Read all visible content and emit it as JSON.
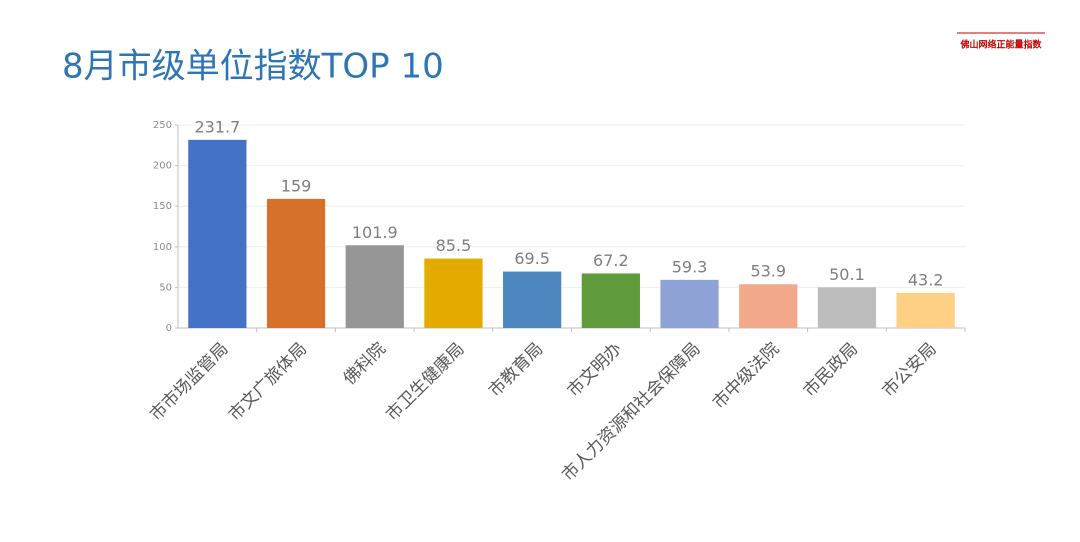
{
  "logo": "佛山网络正能量指数",
  "chart_data": {
    "type": "bar",
    "title": "8月市级单位指数TOP 10",
    "categories": [
      "市市场监管局",
      "市文广旅体局",
      "佛科院",
      "市卫生健康局",
      "市教育局",
      "市文明办",
      "市人力资源和社会保障局",
      "市中级法院",
      "市民政局",
      "市公安局"
    ],
    "values": [
      231.7,
      159,
      101.9,
      85.5,
      69.5,
      67.2,
      59.3,
      53.9,
      50.1,
      43.2
    ],
    "colors": [
      "#4472c4",
      "#d7702a",
      "#969696",
      "#e3aa00",
      "#4e87c0",
      "#5f9a3c",
      "#8fa3d6",
      "#f1a98a",
      "#bdbdbd",
      "#fdd083"
    ],
    "ylim": [
      0,
      250
    ],
    "yticks": [
      0,
      50,
      100,
      150,
      200,
      250
    ],
    "grid": true
  }
}
